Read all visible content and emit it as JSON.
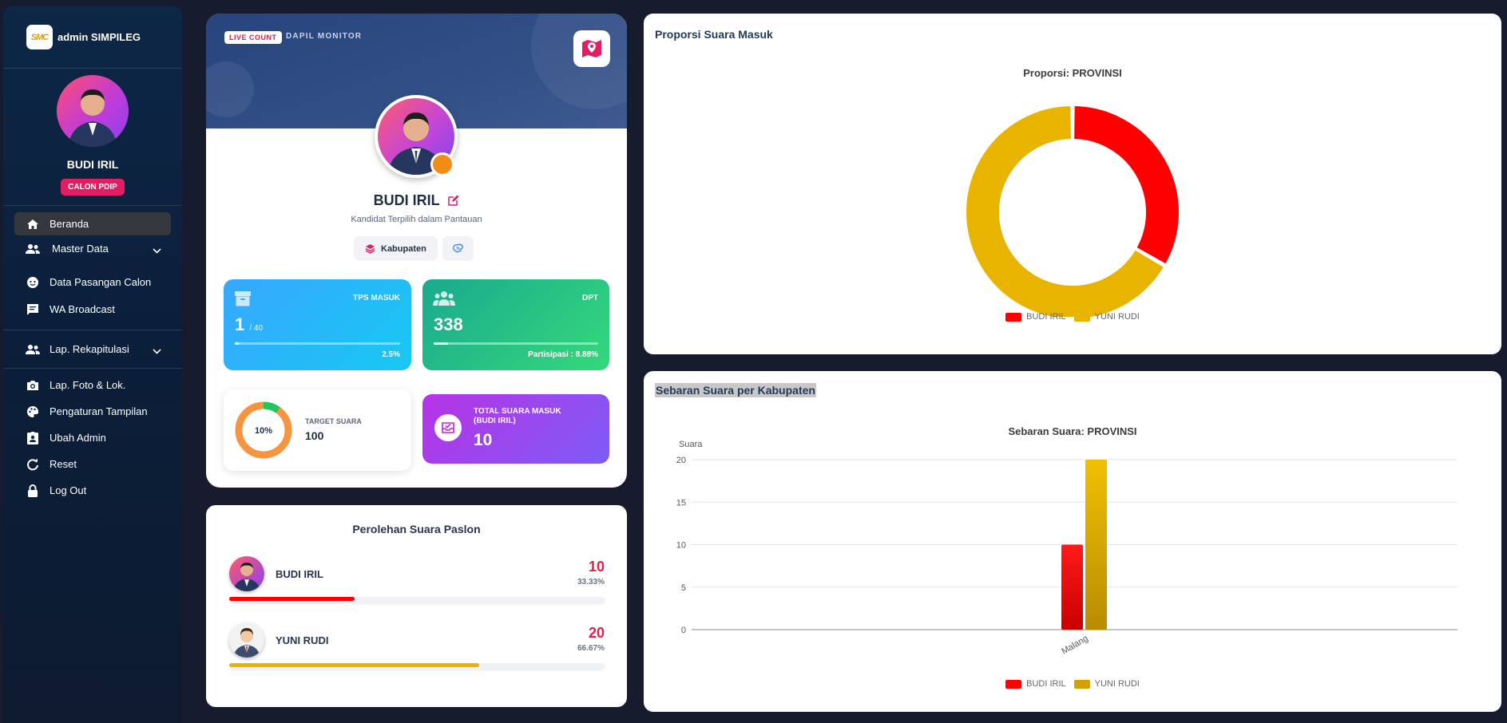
{
  "sidebar": {
    "brand": {
      "logo_text": "SMC",
      "name": "admin SIMPILEG"
    },
    "profile": {
      "name": "BUDI IRIL",
      "badge": "CALON PDIP"
    },
    "nav": [
      {
        "label": "Beranda",
        "icon": "home-icon",
        "active": true
      },
      {
        "label": "Master Data",
        "icon": "users-icon",
        "has_submenu": true
      },
      {
        "label": "Data Pasangan Calon",
        "icon": "face-icon"
      },
      {
        "label": "WA Broadcast",
        "icon": "chat-icon"
      },
      {
        "label": "Lap. Rekapitulasi",
        "icon": "users-icon",
        "has_submenu": true
      },
      {
        "label": "Lap. Foto & Lok.",
        "icon": "camera-icon"
      },
      {
        "label": "Pengaturan Tampilan",
        "icon": "palette-icon"
      },
      {
        "label": "Ubah Admin",
        "icon": "user-badge-icon"
      },
      {
        "label": "Reset",
        "icon": "refresh-icon"
      },
      {
        "label": "Log Out",
        "icon": "lock-icon"
      }
    ]
  },
  "profile_card": {
    "live_badge": "LIVE COUNT",
    "section_label": "DAPIL MONITOR",
    "name": "BUDI IRIL",
    "subtitle": "Kandidat Terpilih dalam Pantauan",
    "chip_label": "Kabupaten",
    "tps": {
      "label": "TPS MASUK",
      "value": "1",
      "total": "/ 40",
      "percent_label": "2.5%",
      "progress": 0.025
    },
    "dpt": {
      "label": "DPT",
      "value": "338",
      "participation_label": "Partisipasi : 8.88%",
      "progress": 0.0888
    },
    "target": {
      "ring_label": "10%",
      "progress": 0.1,
      "label": "TARGET SUARA",
      "value": "100"
    },
    "total_votes": {
      "label": "TOTAL SUARA MASUK (BUDI IRIL)",
      "value": "10"
    }
  },
  "pairs_card": {
    "title": "Perolehan Suara Paslon",
    "candidates": [
      {
        "name": "BUDI IRIL",
        "votes": "10",
        "percent": "33.33%",
        "share": 0.3333,
        "color": "#ff0000"
      },
      {
        "name": "YUNI RUDI",
        "votes": "20",
        "percent": "66.67%",
        "share": 0.6667,
        "color": "#e8b400"
      }
    ]
  },
  "proportion_card": {
    "heading": "Proporsi Suara Masuk"
  },
  "distribution_card": {
    "heading": "Sebaran Suara per Kabupaten"
  },
  "chart_data": [
    {
      "type": "pie",
      "title": "Proporsi: PROVINSI",
      "labels": [
        "BUDI IRIL",
        "YUNI RUDI"
      ],
      "values": [
        10,
        20
      ],
      "colors": [
        "#ff0000",
        "#e8b400"
      ],
      "legend": "bottom"
    },
    {
      "type": "bar",
      "title": "Sebaran Suara: PROVINSI",
      "categories": [
        "Malang"
      ],
      "series": [
        {
          "name": "BUDI IRIL",
          "values": [
            10
          ],
          "color": "#ff0000"
        },
        {
          "name": "YUNI RUDI",
          "values": [
            20
          ],
          "color": "#e8b400"
        }
      ],
      "ylabel": "Suara",
      "ylim": [
        0,
        20
      ],
      "yticks": [
        "0",
        "5",
        "10",
        "15",
        "20"
      ],
      "grid": true,
      "legend": "bottom"
    }
  ]
}
